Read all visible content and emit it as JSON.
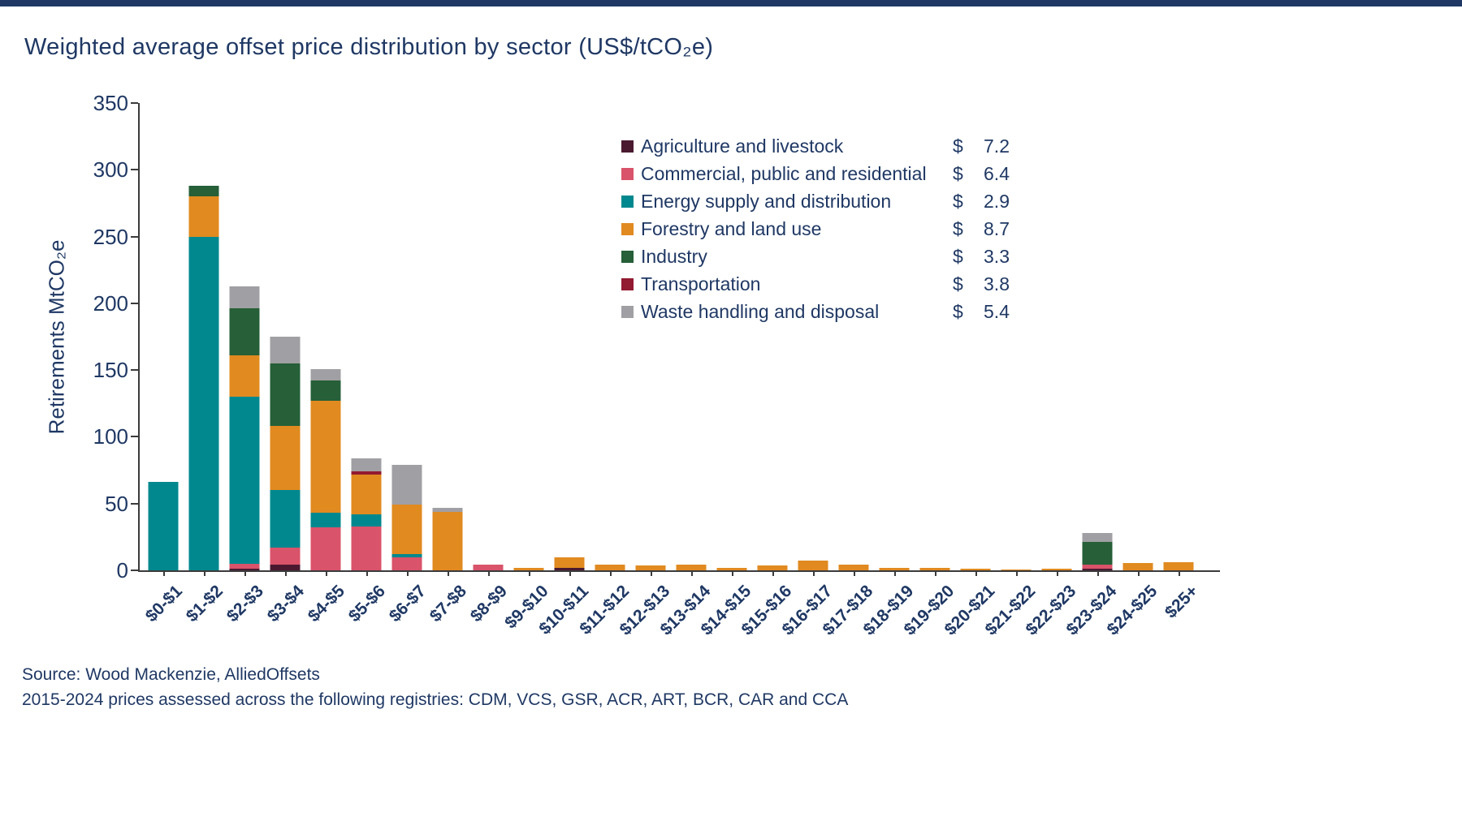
{
  "page": {
    "title": "Weighted average offset price distribution by sector (US$/tCO₂e)",
    "source_line1": "Source: Wood Mackenzie, AlliedOffsets",
    "source_line2": "2015-2024 prices assessed across the following registries: CDM, VCS,  GSR,  ACR,  ART,  BCR,  CAR  and CCA"
  },
  "colors": {
    "title_text": "#1F3864",
    "axis_line": "#3b3b3b",
    "top_bar": "#1F3864"
  },
  "chart_data": {
    "type": "bar",
    "stacked": true,
    "title": "Weighted average offset price distribution by sector (US$/tCO₂e)",
    "ylabel": "Retirements MtCO₂e",
    "xlabel": "",
    "ylim": [
      0,
      350
    ],
    "yticks": [
      0,
      50,
      100,
      150,
      200,
      250,
      300,
      350
    ],
    "grid": false,
    "legend_position": "upper-right",
    "price_prefix": "$",
    "categories": [
      "$0-$1",
      "$1-$2",
      "$2-$3",
      "$3-$4",
      "$4-$5",
      "$5-$6",
      "$6-$7",
      "$7-$8",
      "$8-$9",
      "$9-$10",
      "$10-$11",
      "$11-$12",
      "$12-$13",
      "$13-$14",
      "$14-$15",
      "$15-$16",
      "$16-$17",
      "$17-$18",
      "$18-$19",
      "$19-$20",
      "$20-$21",
      "$21-$22",
      "$22-$23",
      "$23-$24",
      "$24-$25",
      "$25+"
    ],
    "series": [
      {
        "name": "Agriculture and livestock",
        "avg_price": "7.2",
        "color": "#4A1930",
        "values": [
          0,
          0,
          1,
          4,
          0,
          0,
          0,
          0,
          0,
          0,
          2,
          0,
          0,
          0,
          0,
          0,
          0,
          0,
          0,
          0,
          0,
          0,
          0,
          1,
          0,
          0
        ]
      },
      {
        "name": "Commercial, public and residential",
        "avg_price": "6.4",
        "color": "#D9536A",
        "values": [
          0,
          0,
          4,
          13,
          32,
          33,
          10,
          0,
          4,
          0,
          0,
          0,
          0,
          0,
          0,
          0,
          0,
          0,
          0,
          0,
          0,
          0,
          0,
          3,
          0,
          0
        ]
      },
      {
        "name": "Energy supply and distribution",
        "avg_price": "2.9",
        "color": "#00888E",
        "values": [
          66,
          250,
          125,
          43,
          11,
          9,
          2,
          0,
          0,
          0,
          0,
          0,
          0,
          0,
          0,
          0,
          0,
          0,
          0,
          0,
          0,
          0,
          0,
          0,
          0,
          0
        ]
      },
      {
        "name": "Forestry and land use",
        "avg_price": "8.7",
        "color": "#E08A20",
        "values": [
          0,
          30,
          31,
          48,
          84,
          30,
          37,
          44,
          0,
          2,
          8,
          4,
          3.5,
          4.5,
          2,
          3.5,
          7.5,
          4.5,
          2,
          2,
          1.5,
          0.5,
          1,
          0,
          5.5,
          6
        ]
      },
      {
        "name": "Industry",
        "avg_price": "3.3",
        "color": "#265F38",
        "values": [
          0,
          8,
          35,
          47,
          15,
          0,
          0,
          0,
          0,
          0,
          0,
          0,
          0,
          0,
          0,
          0,
          0,
          0,
          0,
          0,
          0,
          0,
          0,
          17,
          0,
          0
        ]
      },
      {
        "name": "Transportation",
        "avg_price": "3.8",
        "color": "#921A31",
        "values": [
          0,
          0,
          0,
          0,
          0,
          2,
          0,
          0,
          0,
          0,
          0,
          0,
          0,
          0,
          0,
          0,
          0,
          0,
          0,
          0,
          0,
          0,
          0,
          0,
          0,
          0
        ]
      },
      {
        "name": "Waste handling and disposal",
        "avg_price": "5.4",
        "color": "#A09FA3",
        "values": [
          0,
          0,
          17,
          20,
          9,
          10,
          30,
          3,
          0,
          0,
          0,
          0,
          0,
          0,
          0,
          0,
          0,
          0,
          0,
          0,
          0,
          0,
          0,
          7,
          0,
          0
        ]
      }
    ]
  }
}
